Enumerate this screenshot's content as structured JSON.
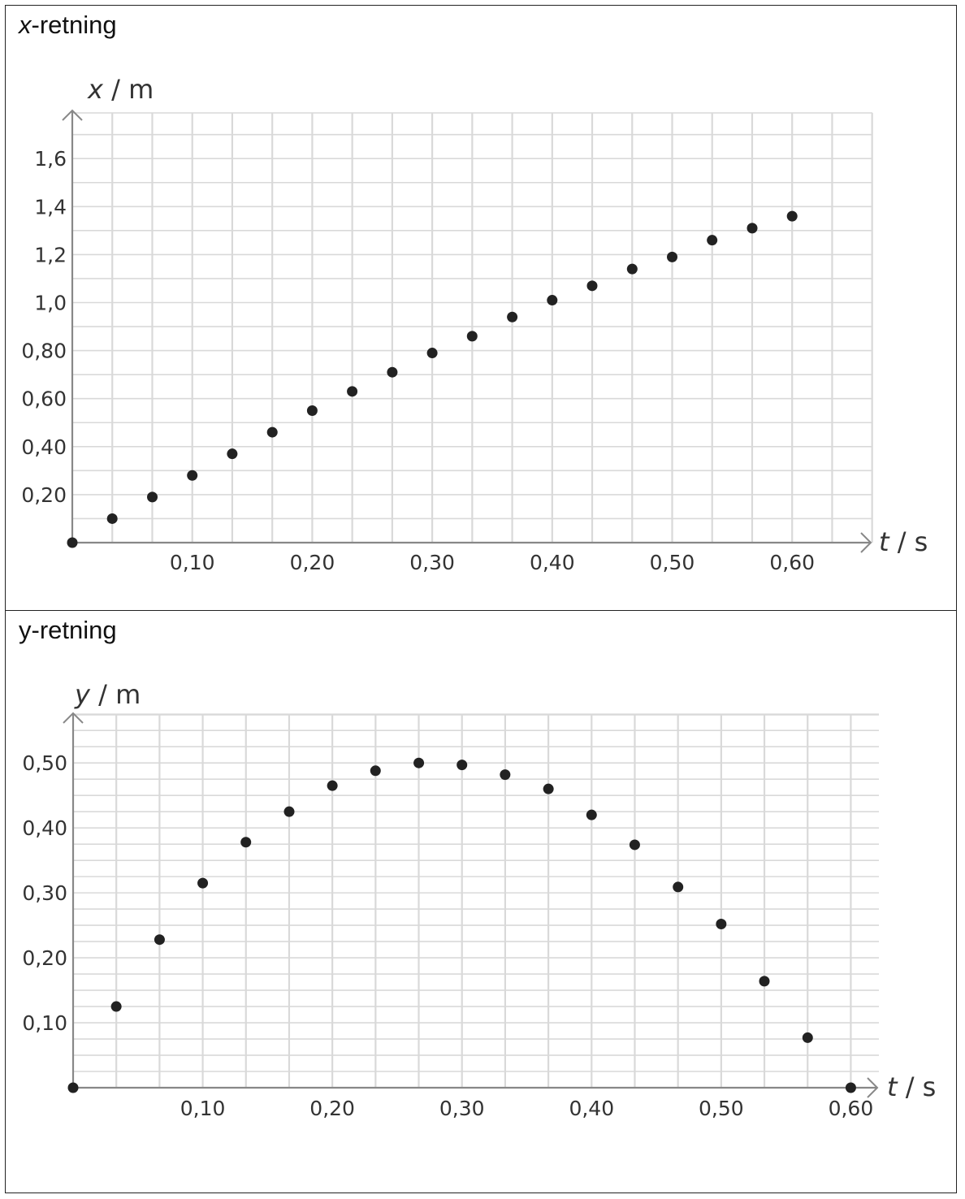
{
  "panels": [
    {
      "title_var": "x",
      "title_rest": "-retning"
    },
    {
      "title_var": "y-retning",
      "title_rest": ""
    }
  ],
  "colors": {
    "grid": "#d9d9d9",
    "axis": "#888888",
    "point": "#222222",
    "border": "#222222"
  },
  "chart_data": [
    {
      "type": "scatter",
      "ylabel_var": "x",
      "ylabel_unit": " / m",
      "xlabel_var": "t",
      "xlabel_unit": " / s",
      "xlim": [
        0,
        0.6667
      ],
      "ylim": [
        0,
        1.8
      ],
      "xticks": [
        0.1,
        0.2,
        0.3,
        0.4,
        0.5,
        0.6
      ],
      "xtick_labels": [
        "0,10",
        "0,20",
        "0,30",
        "0,40",
        "0,50",
        "0,60"
      ],
      "yticks": [
        0.2,
        0.4,
        0.6,
        0.8,
        1.0,
        1.2,
        1.4,
        1.6
      ],
      "ytick_labels": [
        "0,20",
        "0,40",
        "0,60",
        "0,80",
        "1,0",
        "1,2",
        "1,4",
        "1,6"
      ],
      "grid": true,
      "x": [
        0,
        0.0333,
        0.0667,
        0.1,
        0.1333,
        0.1667,
        0.2,
        0.2333,
        0.2667,
        0.3,
        0.3333,
        0.3667,
        0.4,
        0.4333,
        0.4667,
        0.5,
        0.5333,
        0.5667,
        0.6
      ],
      "y": [
        0.0,
        0.1,
        0.19,
        0.28,
        0.37,
        0.46,
        0.55,
        0.63,
        0.71,
        0.79,
        0.86,
        0.94,
        1.01,
        1.07,
        1.14,
        1.19,
        1.26,
        1.31,
        1.36
      ]
    },
    {
      "type": "scatter",
      "ylabel_var": "y",
      "ylabel_unit": " / m",
      "xlabel_var": "t",
      "xlabel_unit": " / s",
      "xlim": [
        0,
        0.6217
      ],
      "ylim": [
        0,
        0.575
      ],
      "xticks": [
        0.1,
        0.2,
        0.3,
        0.4,
        0.5,
        0.6
      ],
      "xtick_labels": [
        "0,10",
        "0,20",
        "0,30",
        "0,40",
        "0,50",
        "0,60"
      ],
      "yticks": [
        0.1,
        0.2,
        0.3,
        0.4,
        0.5
      ],
      "ytick_labels": [
        "0,10",
        "0,20",
        "0,30",
        "0,40",
        "0,50"
      ],
      "grid": true,
      "x": [
        0,
        0.0333,
        0.0667,
        0.1,
        0.1333,
        0.1667,
        0.2,
        0.2333,
        0.2667,
        0.3,
        0.3333,
        0.3667,
        0.4,
        0.4333,
        0.4667,
        0.5,
        0.5333,
        0.5667,
        0.6
      ],
      "y": [
        0.0,
        0.125,
        0.228,
        0.315,
        0.378,
        0.425,
        0.465,
        0.488,
        0.5,
        0.497,
        0.482,
        0.46,
        0.42,
        0.374,
        0.309,
        0.252,
        0.164,
        0.077,
        0.0
      ]
    }
  ]
}
